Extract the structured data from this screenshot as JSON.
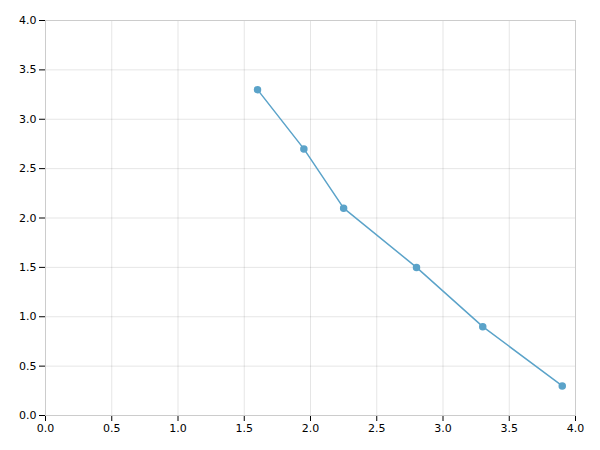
{
  "chart_data": {
    "type": "line",
    "x": [
      1.6,
      1.95,
      2.25,
      2.8,
      3.3,
      3.9
    ],
    "values": [
      3.3,
      2.7,
      2.1,
      1.5,
      0.9,
      0.3
    ],
    "color": "#5ba3c9",
    "marker": "circle",
    "xlim": [
      0.0,
      4.0
    ],
    "ylim": [
      0.0,
      4.0
    ],
    "xticks": [
      {
        "value": 0,
        "label": "0.0"
      },
      0.5,
      {
        "value": 1,
        "label": "1.0"
      },
      1.5,
      {
        "value": 2,
        "label": "2.0"
      },
      2.5,
      {
        "value": 3,
        "label": "3.0"
      },
      3.5,
      {
        "value": 4,
        "label": "4.0"
      }
    ],
    "yticks": [
      {
        "value": 0,
        "label": "0.0"
      },
      0.5,
      {
        "value": 1,
        "label": "1.0"
      },
      1.5,
      {
        "value": 2,
        "label": "2.0"
      },
      2.5,
      {
        "value": 3,
        "label": "3.0"
      },
      3.5,
      {
        "value": 4,
        "label": "4.0"
      }
    ],
    "grid": true
  }
}
